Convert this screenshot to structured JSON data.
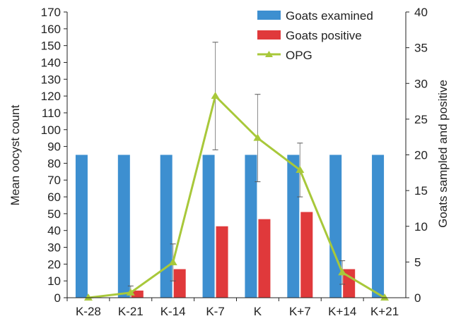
{
  "chart_data": {
    "type": "bar",
    "categories": [
      "K-28",
      "K-21",
      "K-14",
      "K-7",
      "K",
      "K+7",
      "K+14",
      "K+21"
    ],
    "series": [
      {
        "name": "Goats examined",
        "kind": "bar",
        "axis": "right",
        "color": "#3d8fd0",
        "values": [
          20,
          20,
          20,
          20,
          20,
          20,
          20,
          20
        ]
      },
      {
        "name": "Goats positive",
        "kind": "bar",
        "axis": "right",
        "color": "#e0393b",
        "values": [
          0,
          1,
          4,
          10,
          11,
          12,
          4,
          0
        ]
      },
      {
        "name": "OPG",
        "kind": "line",
        "axis": "left",
        "color": "#a8c83a",
        "values": [
          0,
          3,
          21,
          120,
          95,
          76,
          15,
          0
        ],
        "error": [
          0,
          4,
          11,
          32,
          26,
          16,
          7,
          0
        ]
      }
    ],
    "ylabel": "Mean oocyst count",
    "y2label": "Goats sampled and positive",
    "ylim": [
      0,
      170
    ],
    "y2lim": [
      0,
      40
    ],
    "yticks": [
      0,
      10,
      20,
      30,
      40,
      50,
      60,
      70,
      80,
      90,
      100,
      110,
      120,
      130,
      140,
      150,
      160,
      170
    ],
    "y2ticks": [
      0,
      5,
      10,
      15,
      20,
      25,
      30,
      35,
      40
    ],
    "legend_position": "top-right"
  }
}
